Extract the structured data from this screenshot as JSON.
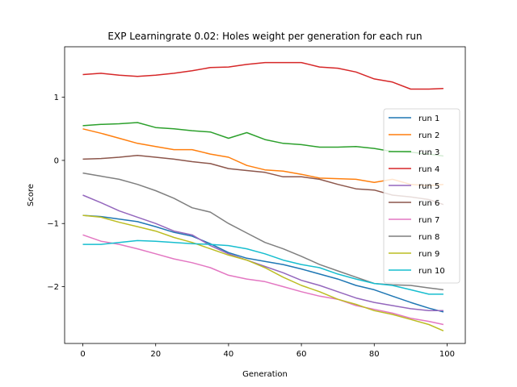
{
  "chart_data": {
    "type": "line",
    "title": "EXP Learningrate 0.02: Holes weight per generation for each run",
    "xlabel": "Generation",
    "ylabel": "Score",
    "xlim": [
      -5,
      105
    ],
    "ylim": [
      -2.9,
      1.8
    ],
    "xticks": [
      0,
      20,
      40,
      60,
      80,
      100
    ],
    "yticks": [
      -2,
      -1,
      0,
      1
    ],
    "grid": false,
    "legend_position": "right",
    "series": [
      {
        "name": "run 1",
        "color": "#1f77b4",
        "x": [
          0,
          5,
          10,
          15,
          20,
          25,
          30,
          35,
          40,
          45,
          50,
          55,
          60,
          65,
          70,
          75,
          80,
          85,
          90,
          95,
          99
        ],
        "y": [
          -0.87,
          -0.89,
          -0.93,
          -0.97,
          -1.05,
          -1.14,
          -1.2,
          -1.32,
          -1.46,
          -1.55,
          -1.6,
          -1.65,
          -1.72,
          -1.8,
          -1.88,
          -1.98,
          -2.05,
          -2.15,
          -2.25,
          -2.34,
          -2.4
        ]
      },
      {
        "name": "run 2",
        "color": "#ff7f0e",
        "x": [
          0,
          5,
          10,
          15,
          20,
          25,
          30,
          35,
          40,
          45,
          50,
          55,
          60,
          65,
          70,
          75,
          80,
          85,
          90,
          95,
          99
        ],
        "y": [
          0.5,
          0.43,
          0.35,
          0.27,
          0.22,
          0.17,
          0.17,
          0.1,
          0.05,
          -0.08,
          -0.15,
          -0.17,
          -0.22,
          -0.28,
          -0.29,
          -0.3,
          -0.35,
          -0.3,
          -0.38,
          -0.4,
          -0.38
        ]
      },
      {
        "name": "run 3",
        "color": "#2ca02c",
        "x": [
          0,
          5,
          10,
          15,
          20,
          25,
          30,
          35,
          40,
          45,
          50,
          55,
          60,
          65,
          70,
          75,
          80,
          85,
          90,
          95,
          99
        ],
        "y": [
          0.55,
          0.57,
          0.58,
          0.6,
          0.52,
          0.5,
          0.47,
          0.45,
          0.35,
          0.44,
          0.33,
          0.27,
          0.25,
          0.21,
          0.21,
          0.22,
          0.19,
          0.14,
          0.13,
          0.1,
          0.07
        ]
      },
      {
        "name": "run 4",
        "color": "#d62728",
        "x": [
          0,
          5,
          10,
          15,
          20,
          25,
          30,
          35,
          40,
          45,
          50,
          55,
          60,
          65,
          70,
          75,
          80,
          85,
          90,
          95,
          99
        ],
        "y": [
          1.36,
          1.38,
          1.35,
          1.33,
          1.35,
          1.38,
          1.42,
          1.47,
          1.48,
          1.52,
          1.55,
          1.55,
          1.55,
          1.48,
          1.46,
          1.4,
          1.29,
          1.24,
          1.13,
          1.13,
          1.14
        ]
      },
      {
        "name": "run 5",
        "color": "#9467bd",
        "x": [
          0,
          5,
          10,
          15,
          20,
          25,
          30,
          35,
          40,
          45,
          50,
          55,
          60,
          65,
          70,
          75,
          80,
          85,
          90,
          95,
          99
        ],
        "y": [
          -0.55,
          -0.67,
          -0.8,
          -0.9,
          -1.0,
          -1.12,
          -1.18,
          -1.35,
          -1.48,
          -1.58,
          -1.68,
          -1.78,
          -1.9,
          -1.98,
          -2.08,
          -2.18,
          -2.25,
          -2.3,
          -2.35,
          -2.38,
          -2.38
        ]
      },
      {
        "name": "run 6",
        "color": "#8c564b",
        "x": [
          0,
          5,
          10,
          15,
          20,
          25,
          30,
          35,
          40,
          45,
          50,
          55,
          60,
          65,
          70,
          75,
          80,
          85,
          90,
          95,
          99
        ],
        "y": [
          0.02,
          0.03,
          0.05,
          0.08,
          0.05,
          0.02,
          -0.02,
          -0.05,
          -0.13,
          -0.16,
          -0.19,
          -0.26,
          -0.26,
          -0.3,
          -0.38,
          -0.45,
          -0.47,
          -0.55,
          -0.58,
          -0.62,
          -0.7
        ]
      },
      {
        "name": "run 7",
        "color": "#e377c2",
        "x": [
          0,
          5,
          10,
          15,
          20,
          25,
          30,
          35,
          40,
          45,
          50,
          55,
          60,
          65,
          70,
          75,
          80,
          85,
          90,
          95,
          99
        ],
        "y": [
          -1.18,
          -1.28,
          -1.33,
          -1.4,
          -1.48,
          -1.56,
          -1.62,
          -1.7,
          -1.82,
          -1.88,
          -1.92,
          -2.0,
          -2.08,
          -2.15,
          -2.2,
          -2.3,
          -2.36,
          -2.42,
          -2.5,
          -2.55,
          -2.6
        ]
      },
      {
        "name": "run 8",
        "color": "#7f7f7f",
        "x": [
          0,
          5,
          10,
          15,
          20,
          25,
          30,
          35,
          40,
          45,
          50,
          55,
          60,
          65,
          70,
          75,
          80,
          85,
          90,
          95,
          99
        ],
        "y": [
          -0.2,
          -0.25,
          -0.3,
          -0.38,
          -0.48,
          -0.6,
          -0.75,
          -0.82,
          -1.0,
          -1.15,
          -1.3,
          -1.4,
          -1.52,
          -1.65,
          -1.75,
          -1.85,
          -1.95,
          -1.97,
          -1.98,
          -2.02,
          -2.05
        ]
      },
      {
        "name": "run 9",
        "color": "#bcbd22",
        "x": [
          0,
          5,
          10,
          15,
          20,
          25,
          30,
          35,
          40,
          45,
          50,
          55,
          60,
          65,
          70,
          75,
          80,
          85,
          90,
          95,
          99
        ],
        "y": [
          -0.87,
          -0.9,
          -0.98,
          -1.05,
          -1.12,
          -1.22,
          -1.3,
          -1.4,
          -1.5,
          -1.58,
          -1.7,
          -1.85,
          -1.98,
          -2.08,
          -2.2,
          -2.28,
          -2.38,
          -2.44,
          -2.52,
          -2.6,
          -2.7
        ]
      },
      {
        "name": "run 10",
        "color": "#17becf",
        "x": [
          0,
          5,
          10,
          15,
          20,
          25,
          30,
          35,
          40,
          45,
          50,
          55,
          60,
          65,
          70,
          75,
          80,
          85,
          90,
          95,
          99
        ],
        "y": [
          -1.33,
          -1.33,
          -1.3,
          -1.27,
          -1.28,
          -1.3,
          -1.32,
          -1.33,
          -1.35,
          -1.4,
          -1.48,
          -1.58,
          -1.65,
          -1.7,
          -1.8,
          -1.88,
          -1.95,
          -1.98,
          -2.05,
          -2.12,
          -2.12
        ]
      }
    ]
  }
}
